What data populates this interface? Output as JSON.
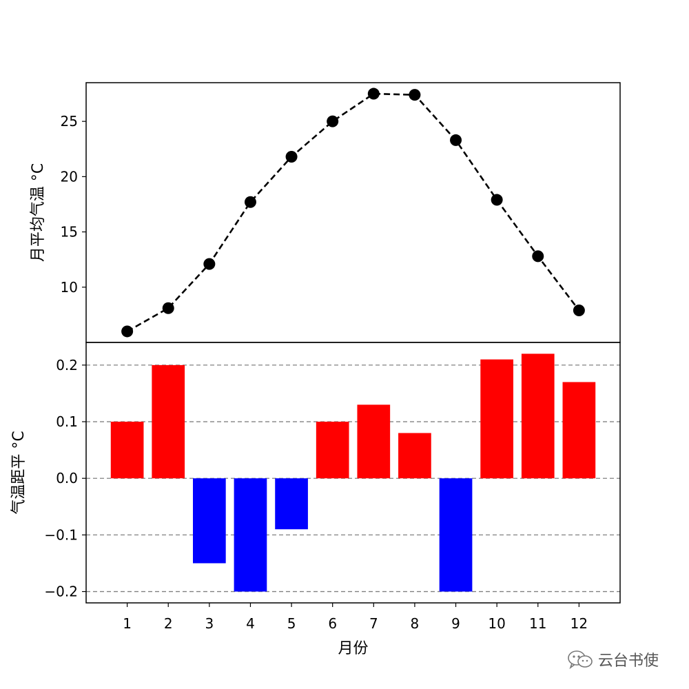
{
  "chart_data": [
    {
      "type": "line",
      "x": [
        1,
        2,
        3,
        4,
        5,
        6,
        7,
        8,
        9,
        10,
        11,
        12
      ],
      "values": [
        6.0,
        8.1,
        12.1,
        17.7,
        21.8,
        25.0,
        27.5,
        27.4,
        23.3,
        17.9,
        12.8,
        7.9
      ],
      "ylabel": "月平均气温 °C",
      "ylim": [
        5,
        28.5
      ],
      "yticks": [
        10,
        15,
        20,
        25
      ],
      "line_color": "#000000",
      "line_style": "dashed",
      "marker": "circle"
    },
    {
      "type": "bar",
      "categories": [
        "1",
        "2",
        "3",
        "4",
        "5",
        "6",
        "7",
        "8",
        "9",
        "10",
        "11",
        "12"
      ],
      "values": [
        0.1,
        0.2,
        -0.15,
        -0.2,
        -0.09,
        0.1,
        0.13,
        0.08,
        -0.2,
        0.21,
        0.22,
        0.17
      ],
      "ylabel": "气温距平 °C",
      "xlabel": "月份",
      "ylim": [
        -0.22,
        0.24
      ],
      "yticks": [
        -0.2,
        -0.1,
        0.0,
        0.1,
        0.2
      ],
      "ytick_labels": [
        "−0.2",
        "−0.1",
        "0.0",
        "0.1",
        "0.2"
      ],
      "positive_color": "#ff0000",
      "negative_color": "#0000ff",
      "grid": "horizontal-dashed",
      "grid_color": "#808080"
    }
  ],
  "watermark": {
    "text": "云台书使",
    "icon": "wechat-icon"
  }
}
